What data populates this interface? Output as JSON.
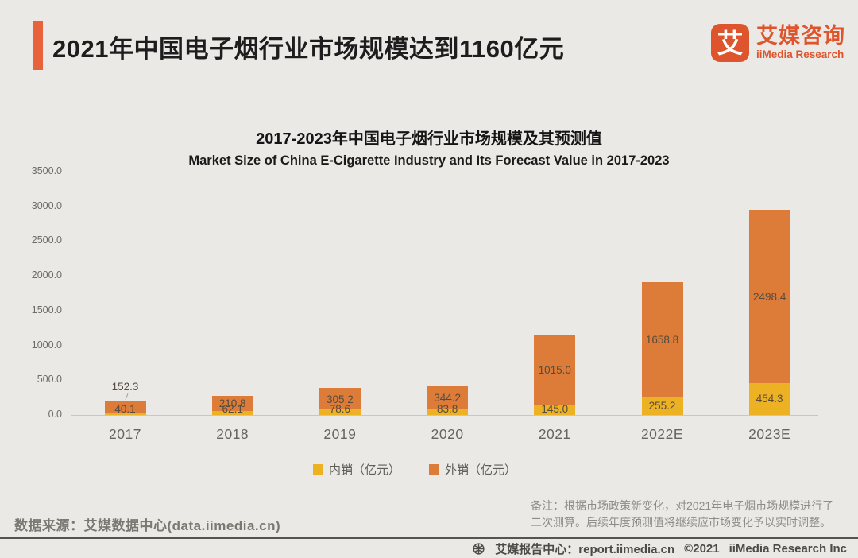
{
  "page": {
    "background": "#eae9e6"
  },
  "header": {
    "title": "2021年中国电子烟行业市场规模达到1160亿元",
    "accent_color": "#e8633b"
  },
  "logo": {
    "icon_char": "艾",
    "name_cn": "艾媒咨询",
    "name_en": "iiMedia Research",
    "color": "#de552d"
  },
  "chart": {
    "title_cn": "2017-2023年中国电子烟行业市场规模及其预测值",
    "title_en": "Market Size of China E-Cigarette Industry and Its Forecast Value in 2017-2023"
  },
  "chart_data": {
    "type": "bar",
    "stacked": true,
    "title": "2017-2023年中国电子烟行业市场规模及其预测值",
    "subtitle": "Market Size of China E-Cigarette Industry and Its Forecast Value in 2017-2023",
    "categories": [
      "2017",
      "2018",
      "2019",
      "2020",
      "2021",
      "2022E",
      "2023E"
    ],
    "series": [
      {
        "name": "内销（亿元）",
        "color": "#edb224",
        "values": [
          40.1,
          62.1,
          78.6,
          83.8,
          145.0,
          255.2,
          454.3
        ]
      },
      {
        "name": "外销（亿元）",
        "color": "#dc7c38",
        "values": [
          152.3,
          210.8,
          305.2,
          344.2,
          1015.0,
          1658.8,
          2498.4
        ]
      }
    ],
    "totals": [
      192.4,
      272.9,
      383.8,
      428.0,
      1160.0,
      1914.0,
      2952.7
    ],
    "ylim": [
      0,
      3500
    ],
    "ytick_step": 500,
    "ytick_labels": [
      "0.0",
      "500.0",
      "1000.0",
      "1500.0",
      "2000.0",
      "2500.0",
      "3000.0",
      "3500.0"
    ],
    "grid": false,
    "legend_position": "bottom"
  },
  "note": {
    "line1": "备注：根据市场政策新变化，对2021年电子烟市场规模进行了",
    "line2": "二次测算。后续年度预测值将继续应市场变化予以实时调整。"
  },
  "source": {
    "text": "数据来源：艾媒数据中心(data.iimedia.cn)"
  },
  "footer": {
    "report_center": "艾媒报告中心：report.iimedia.cn",
    "copyright": "©2021",
    "company": "iiMedia Research Inc"
  }
}
